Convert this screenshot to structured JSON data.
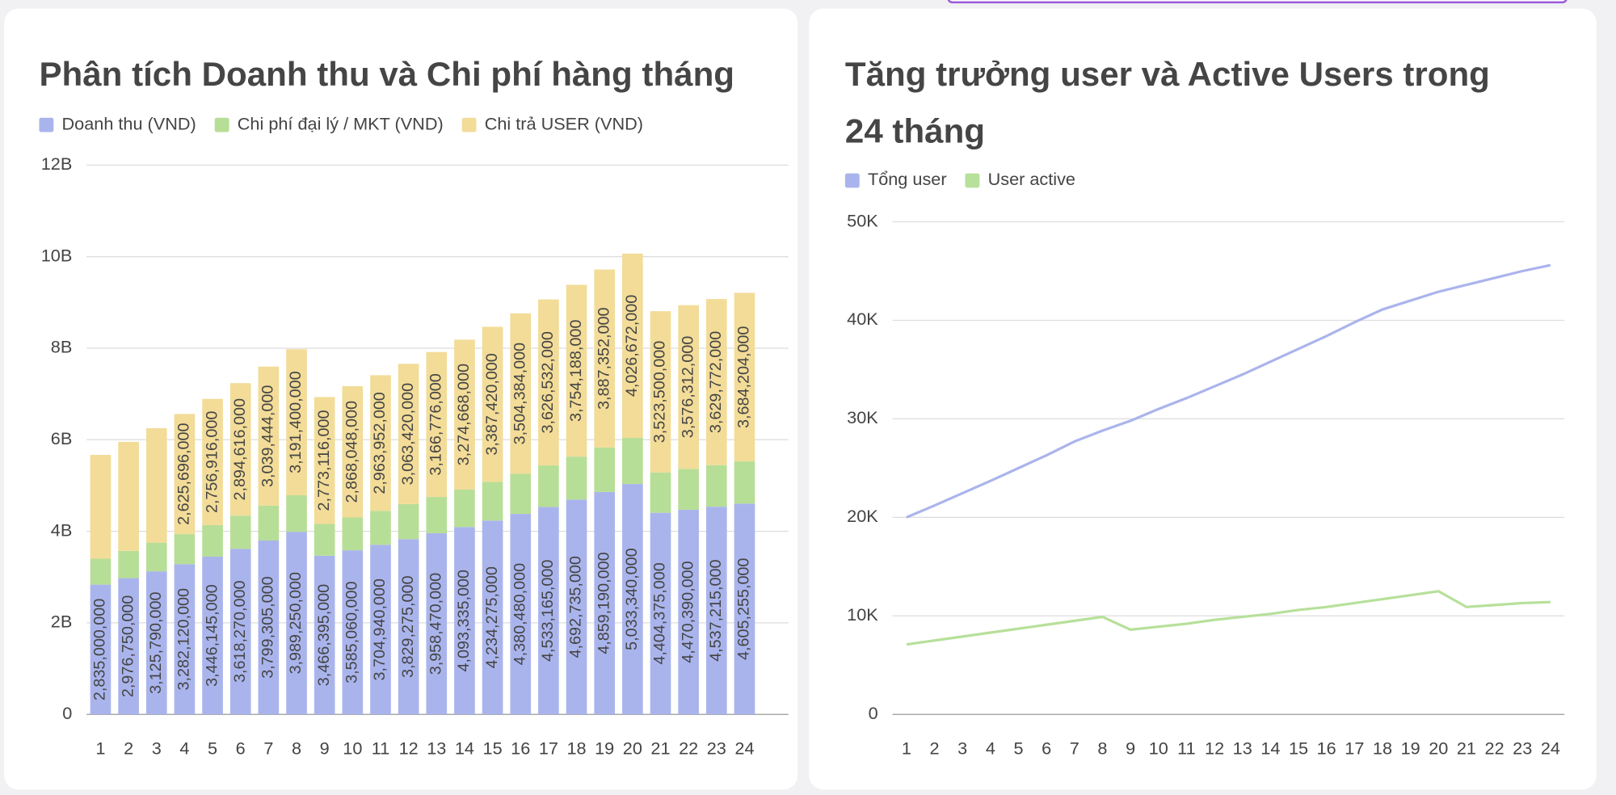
{
  "chart_data": [
    {
      "type": "bar",
      "stacked": true,
      "title": "Phân tích Doanh thu và Chi phí hàng tháng",
      "categories": [
        "1",
        "2",
        "3",
        "4",
        "5",
        "6",
        "7",
        "8",
        "9",
        "10",
        "11",
        "12",
        "13",
        "14",
        "15",
        "16",
        "17",
        "18",
        "19",
        "20",
        "21",
        "22",
        "23",
        "24"
      ],
      "series": [
        {
          "name": "Doanh thu (VND)",
          "color": "#aab4ec",
          "values": [
            2835000000,
            2976750000,
            3125790000,
            3282120000,
            3446145000,
            3618270000,
            3799305000,
            3989250000,
            3466395000,
            3585060000,
            3704940000,
            3829275000,
            3958470000,
            4093335000,
            4234275000,
            4380480000,
            4533165000,
            4692735000,
            4859190000,
            5033340000,
            4404375000,
            4470390000,
            4537215000,
            4605255000
          ],
          "value_labels": [
            "2,835,000,000",
            "2,976,750,000",
            "3,125,790,000",
            "3,282,120,000",
            "3,446,145,000",
            "3,618,270,000",
            "3,799,305,000",
            "3,989,250,000",
            "3,466,395,000",
            "3,585,060,000",
            "3,704,940,000",
            "3,829,275,000",
            "3,958,470,000",
            "4,093,335,000",
            "4,234,275,000",
            "4,380,480,000",
            "4,533,165,000",
            "4,692,735,000",
            "4,859,190,000",
            "5,033,340,000",
            "4,404,375,000",
            "4,470,390,000",
            "4,537,215,000",
            "4,605,255,000"
          ]
        },
        {
          "name": "Chi phí đại lý / MKT (VND)",
          "color": "#b7de96",
          "values": [
            567000000,
            595350000,
            625158000,
            656424000,
            689229000,
            723654000,
            759861000,
            797850000,
            693279000,
            717012000,
            740988000,
            765855000,
            791694000,
            818667000,
            846855000,
            876096000,
            906633000,
            938547000,
            971838000,
            1006668000,
            880875000,
            894078000,
            907443000,
            921051000
          ]
        },
        {
          "name": "Chi trả USER (VND)",
          "color": "#f2dc98",
          "values": [
            2268000000,
            2381400000,
            2500632000,
            2625696000,
            2756916000,
            2894616000,
            3039444000,
            3191400000,
            2773116000,
            2868048000,
            2963952000,
            3063420000,
            3166776000,
            3274668000,
            3387420000,
            3504384000,
            3626532000,
            3754188000,
            3887352000,
            4026672000,
            3523500000,
            3576312000,
            3629772000,
            3684204000
          ],
          "value_labels": [
            null,
            null,
            null,
            "2,625,696,000",
            "2,756,916,000",
            "2,894,616,000",
            "3,039,444,000",
            "3,191,400,000",
            "2,773,116,000",
            "2,868,048,000",
            "2,963,952,000",
            "3,063,420,000",
            "3,166,776,000",
            "3,274,668,000",
            "3,387,420,000",
            "3,504,384,000",
            "3,626,532,000",
            "3,754,188,000",
            "3,887,352,000",
            "4,026,672,000",
            "3,523,500,000",
            "3,576,312,000",
            "3,629,772,000",
            "3,684,204,000"
          ]
        }
      ],
      "ylim": [
        0,
        12000000000
      ],
      "yticks": [
        0,
        {
          "value": 2000000000,
          "label": "2B"
        },
        {
          "value": 4000000000,
          "label": "4B"
        },
        {
          "value": 6000000000,
          "label": "6B"
        },
        {
          "value": 8000000000,
          "label": "8B"
        },
        {
          "value": 10000000000,
          "label": "10B"
        },
        {
          "value": 12000000000,
          "label": "12B"
        }
      ],
      "grid": true,
      "legend": "top"
    },
    {
      "type": "line",
      "title": "Tăng trưởng user và Active Users trong 24 tháng",
      "categories": [
        "1",
        "2",
        "3",
        "4",
        "5",
        "6",
        "7",
        "8",
        "9",
        "10",
        "11",
        "12",
        "13",
        "14",
        "15",
        "16",
        "17",
        "18",
        "19",
        "20",
        "21",
        "22",
        "23",
        "24"
      ],
      "series": [
        {
          "name": "Tổng user",
          "color": "#aab4ec",
          "values": [
            20000,
            21200,
            22450,
            23700,
            25000,
            26300,
            27700,
            28800,
            29800,
            31000,
            32100,
            33300,
            34500,
            35800,
            37100,
            38400,
            39800,
            41100,
            42000,
            42900,
            43600,
            44300,
            45000,
            45600
          ]
        },
        {
          "name": "User active",
          "color": "#b7e09a",
          "values": [
            7100,
            7500,
            7900,
            8300,
            8700,
            9100,
            9500,
            9900,
            8600,
            8900,
            9200,
            9600,
            9900,
            10200,
            10600,
            10900,
            11300,
            11700,
            12100,
            12500,
            10900,
            11100,
            11300,
            11400
          ]
        }
      ],
      "ylim": [
        0,
        50000
      ],
      "yticks": [
        0,
        {
          "value": 10000,
          "label": "10K"
        },
        {
          "value": 20000,
          "label": "20K"
        },
        {
          "value": 30000,
          "label": "30K"
        },
        {
          "value": 40000,
          "label": "40K"
        },
        {
          "value": 50000,
          "label": "50K"
        }
      ],
      "grid": true,
      "legend": "top"
    }
  ]
}
